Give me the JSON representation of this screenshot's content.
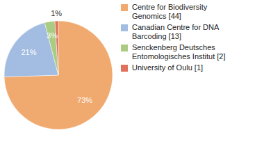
{
  "chart_data": {
    "type": "pie",
    "categories": [
      "Centre for Biodiversity Genomics [44]",
      "Canadian Centre for DNA Barcoding [13]",
      "Senckenberg Deutsches Entomologisches Institut [2]",
      "University of Oulu [1]"
    ],
    "values": [
      73,
      21,
      3,
      1
    ],
    "value_labels": [
      "73%",
      "21%",
      "3%",
      "1%"
    ],
    "colors": [
      "#f0a96e",
      "#a3bce1",
      "#a9cc82",
      "#e1735e"
    ],
    "data_labels": true,
    "legend": "top-right"
  }
}
